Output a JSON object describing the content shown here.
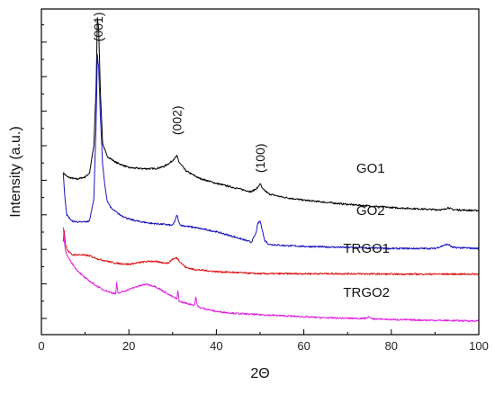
{
  "chart_data": {
    "type": "line",
    "xlabel": "2Θ",
    "ylabel": "Intensity (a.u.)",
    "xlim": [
      0,
      100
    ],
    "x_ticks": [
      "0",
      "20",
      "40",
      "60",
      "80",
      "100"
    ],
    "y_tick_labels_shown": false,
    "grid": false,
    "legend": "none",
    "peak_annotations": [
      {
        "label": "(001)",
        "x": 13
      },
      {
        "label": "(002)",
        "x": 31
      },
      {
        "label": "(100)",
        "x": 50
      }
    ],
    "series": [
      {
        "name": "GO1",
        "color": "#000000",
        "x": [
          5,
          6,
          8,
          10,
          11,
          12,
          12.5,
          12.8,
          13.1,
          13.5,
          14,
          15,
          17,
          20,
          23,
          26,
          28,
          29.5,
          30.5,
          31,
          31.5,
          33,
          36,
          40,
          45,
          48,
          49.5,
          50,
          50.5,
          52,
          55,
          60,
          70,
          80,
          90,
          92,
          93,
          94,
          100
        ],
        "y": [
          0.22,
          0.2,
          0.19,
          0.2,
          0.22,
          0.35,
          0.62,
          0.96,
          0.9,
          0.6,
          0.36,
          0.3,
          0.27,
          0.245,
          0.24,
          0.24,
          0.25,
          0.27,
          0.29,
          0.3,
          0.27,
          0.23,
          0.195,
          0.17,
          0.145,
          0.13,
          0.15,
          0.17,
          0.145,
          0.12,
          0.105,
          0.09,
          0.07,
          0.055,
          0.045,
          0.045,
          0.055,
          0.045,
          0.04
        ]
      },
      {
        "name": "GO2",
        "color": "#1a16c0",
        "x": [
          5,
          5.3,
          5.8,
          7,
          9,
          11,
          12,
          12.5,
          12.8,
          13.1,
          13.5,
          14,
          14.5,
          15,
          16,
          18,
          20,
          22,
          25,
          28,
          30,
          30.5,
          31,
          31.5,
          32,
          35,
          40,
          45,
          48,
          49,
          49.5,
          50,
          50.5,
          51,
          52,
          55,
          60,
          70,
          80,
          90,
          92,
          93,
          94,
          100
        ],
        "y": [
          0.22,
          0.12,
          0.02,
          -0.01,
          -0.015,
          -0.01,
          0.1,
          0.45,
          0.78,
          0.72,
          0.48,
          0.26,
          0.16,
          0.09,
          0.05,
          0.02,
          0.0,
          -0.01,
          -0.02,
          -0.025,
          -0.03,
          -0.01,
          0.02,
          -0.02,
          -0.03,
          -0.04,
          -0.06,
          -0.09,
          -0.11,
          -0.07,
          -0.02,
          -0.01,
          -0.05,
          -0.1,
          -0.12,
          -0.125,
          -0.13,
          -0.135,
          -0.14,
          -0.14,
          -0.125,
          -0.12,
          -0.135,
          -0.14
        ]
      },
      {
        "name": "TRGO1",
        "color": "#e01010",
        "x": [
          5,
          5.2,
          5.5,
          6,
          7,
          9,
          11,
          13,
          15,
          17,
          20,
          23,
          25,
          27,
          29,
          30,
          31,
          32,
          33,
          35,
          40,
          45,
          50,
          60,
          70,
          80,
          90,
          100
        ],
        "y": [
          -0.11,
          -0.05,
          -0.12,
          -0.15,
          -0.17,
          -0.17,
          -0.175,
          -0.19,
          -0.2,
          -0.21,
          -0.215,
          -0.205,
          -0.2,
          -0.205,
          -0.21,
          -0.19,
          -0.185,
          -0.21,
          -0.23,
          -0.24,
          -0.25,
          -0.255,
          -0.26,
          -0.26,
          -0.26,
          -0.262,
          -0.262,
          -0.262
        ]
      },
      {
        "name": "TRGO2",
        "color": "#e020e0",
        "x": [
          5,
          5.2,
          5.5,
          6,
          7,
          8,
          10,
          12,
          14,
          16,
          17,
          17.2,
          17.5,
          18,
          20,
          22,
          24,
          26,
          28,
          30,
          31,
          31.2,
          31.5,
          32,
          33,
          35,
          35.3,
          35.6,
          36,
          38,
          40,
          45,
          50,
          55,
          60,
          65,
          70,
          74,
          75,
          75.3,
          76,
          80,
          90,
          100
        ],
        "y": [
          -0.04,
          -0.09,
          -0.15,
          -0.18,
          -0.21,
          -0.24,
          -0.28,
          -0.31,
          -0.335,
          -0.35,
          -0.355,
          -0.3,
          -0.355,
          -0.35,
          -0.335,
          -0.32,
          -0.31,
          -0.32,
          -0.345,
          -0.37,
          -0.38,
          -0.34,
          -0.39,
          -0.395,
          -0.4,
          -0.41,
          -0.37,
          -0.41,
          -0.42,
          -0.43,
          -0.44,
          -0.45,
          -0.455,
          -0.46,
          -0.465,
          -0.47,
          -0.472,
          -0.473,
          -0.465,
          -0.474,
          -0.475,
          -0.478,
          -0.482,
          -0.485
        ]
      }
    ]
  }
}
